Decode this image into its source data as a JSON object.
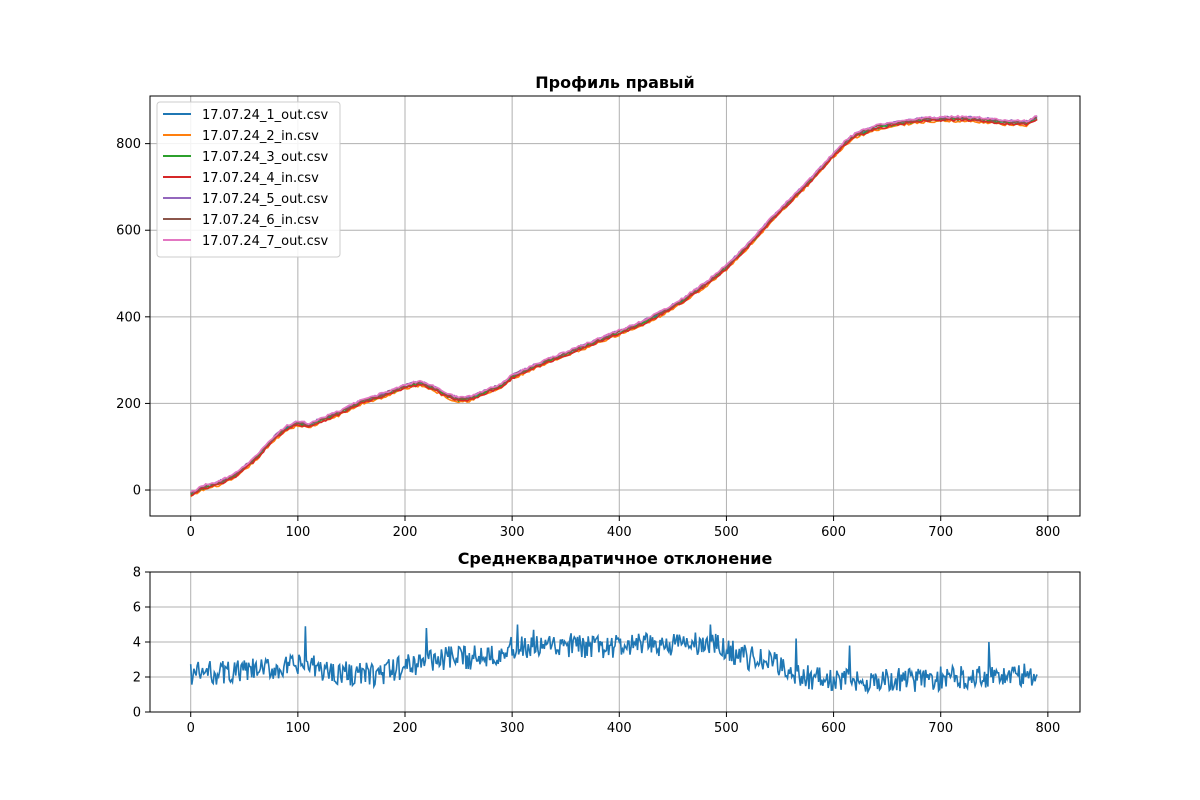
{
  "chart_data": [
    {
      "type": "line",
      "title": "Профиль правый",
      "xlabel": "",
      "ylabel": "",
      "xlim": [
        -38,
        830
      ],
      "ylim": [
        -60,
        910
      ],
      "xticks": [
        0,
        100,
        200,
        300,
        400,
        500,
        600,
        700,
        800
      ],
      "yticks": [
        0,
        200,
        400,
        600,
        800
      ],
      "grid": true,
      "legend": "upper-left",
      "profile_points": [
        [
          0,
          -10
        ],
        [
          10,
          5
        ],
        [
          20,
          12
        ],
        [
          30,
          20
        ],
        [
          40,
          32
        ],
        [
          45,
          40
        ],
        [
          50,
          52
        ],
        [
          60,
          72
        ],
        [
          70,
          100
        ],
        [
          80,
          125
        ],
        [
          90,
          145
        ],
        [
          100,
          155
        ],
        [
          110,
          150
        ],
        [
          120,
          160
        ],
        [
          140,
          180
        ],
        [
          160,
          205
        ],
        [
          180,
          220
        ],
        [
          200,
          240
        ],
        [
          215,
          248
        ],
        [
          230,
          232
        ],
        [
          240,
          218
        ],
        [
          250,
          210
        ],
        [
          260,
          212
        ],
        [
          270,
          222
        ],
        [
          290,
          242
        ],
        [
          300,
          262
        ],
        [
          320,
          285
        ],
        [
          340,
          305
        ],
        [
          360,
          325
        ],
        [
          380,
          345
        ],
        [
          400,
          365
        ],
        [
          420,
          385
        ],
        [
          440,
          410
        ],
        [
          460,
          440
        ],
        [
          480,
          475
        ],
        [
          500,
          515
        ],
        [
          520,
          565
        ],
        [
          540,
          620
        ],
        [
          560,
          670
        ],
        [
          580,
          720
        ],
        [
          600,
          775
        ],
        [
          610,
          800
        ],
        [
          620,
          820
        ],
        [
          640,
          838
        ],
        [
          660,
          848
        ],
        [
          680,
          855
        ],
        [
          700,
          858
        ],
        [
          720,
          858
        ],
        [
          740,
          856
        ],
        [
          760,
          850
        ],
        [
          780,
          848
        ],
        [
          790,
          860
        ]
      ],
      "series": [
        {
          "name": "17.07.24_1_out.csv",
          "color": "#1f77b4",
          "offset": 0
        },
        {
          "name": "17.07.24_2_in.csv",
          "color": "#ff7f0e",
          "offset": -6
        },
        {
          "name": "17.07.24_3_out.csv",
          "color": "#2ca02c",
          "offset": -2
        },
        {
          "name": "17.07.24_4_in.csv",
          "color": "#d62728",
          "offset": -4
        },
        {
          "name": "17.07.24_5_out.csv",
          "color": "#9467bd",
          "offset": 3
        },
        {
          "name": "17.07.24_6_in.csv",
          "color": "#8c564b",
          "offset": 1
        },
        {
          "name": "17.07.24_7_out.csv",
          "color": "#e377c2",
          "offset": 4
        }
      ]
    },
    {
      "type": "line",
      "title": "Среднеквадратичное отклонение",
      "xlabel": "",
      "ylabel": "",
      "xlim": [
        -38,
        830
      ],
      "ylim": [
        0,
        8
      ],
      "xticks": [
        0,
        100,
        200,
        300,
        400,
        500,
        600,
        700,
        800
      ],
      "yticks": [
        0,
        2,
        4,
        6,
        8
      ],
      "grid": true,
      "series": [
        {
          "name": "",
          "color": "#1f77b4",
          "trend_points": [
            [
              0,
              2.2
            ],
            [
              50,
              2.3
            ],
            [
              100,
              2.6
            ],
            [
              105,
              2.7
            ],
            [
              130,
              2.3
            ],
            [
              170,
              2.1
            ],
            [
              190,
              2.4
            ],
            [
              220,
              3.0
            ],
            [
              260,
              3.1
            ],
            [
              300,
              3.6
            ],
            [
              340,
              3.7
            ],
            [
              380,
              3.7
            ],
            [
              420,
              3.8
            ],
            [
              460,
              3.9
            ],
            [
              490,
              3.8
            ],
            [
              520,
              3.1
            ],
            [
              550,
              2.7
            ],
            [
              565,
              2.1
            ],
            [
              600,
              1.8
            ],
            [
              650,
              1.8
            ],
            [
              700,
              1.9
            ],
            [
              740,
              2.1
            ],
            [
              790,
              2.1
            ]
          ],
          "spikes": [
            [
              107,
              4.9
            ],
            [
              220,
              4.8
            ],
            [
              305,
              5.0
            ],
            [
              320,
              4.7
            ],
            [
              355,
              4.5
            ],
            [
              485,
              5.0
            ],
            [
              565,
              4.2
            ],
            [
              615,
              3.8
            ],
            [
              745,
              4.0
            ]
          ]
        }
      ]
    }
  ]
}
